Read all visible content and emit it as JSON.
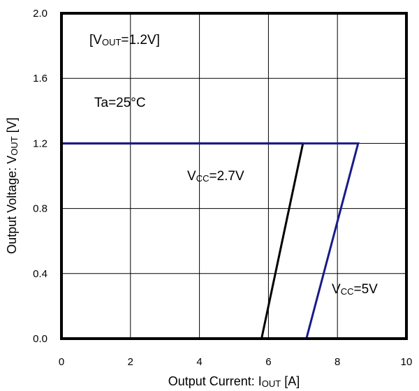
{
  "chart_data": {
    "type": "line",
    "xlabel": {
      "main": "Output Current: I",
      "sub": "OUT",
      "tail": " [A]"
    },
    "ylabel": {
      "main": "Output Voltage: V",
      "sub": "OUT",
      "tail": " [V]"
    },
    "xlim": [
      0,
      10
    ],
    "ylim": [
      0,
      2.0
    ],
    "x_ticks": [
      "0",
      "2",
      "4",
      "6",
      "8",
      "10"
    ],
    "y_ticks": [
      "0.0",
      "0.4",
      "0.8",
      "1.2",
      "1.6",
      "2.0"
    ],
    "grid": true,
    "series": [
      {
        "color": "#000000",
        "points": [
          [
            0,
            1.2
          ],
          [
            7.0,
            1.2
          ],
          [
            5.8,
            0.0
          ]
        ]
      },
      {
        "color": "#1a1a8c",
        "points": [
          [
            0,
            1.2
          ],
          [
            8.6,
            1.2
          ],
          [
            7.1,
            0.0
          ]
        ]
      }
    ],
    "annotations": {
      "vout": {
        "pre": "[V",
        "sub": "OUT",
        "post": "=1.2V]"
      },
      "ta": "Ta=25°C",
      "vcc_27": {
        "pre": "V",
        "sub": "CC",
        "post": "=2.7V"
      },
      "vcc_5": {
        "pre": "V",
        "sub": "CC",
        "post": "=5V"
      }
    }
  }
}
